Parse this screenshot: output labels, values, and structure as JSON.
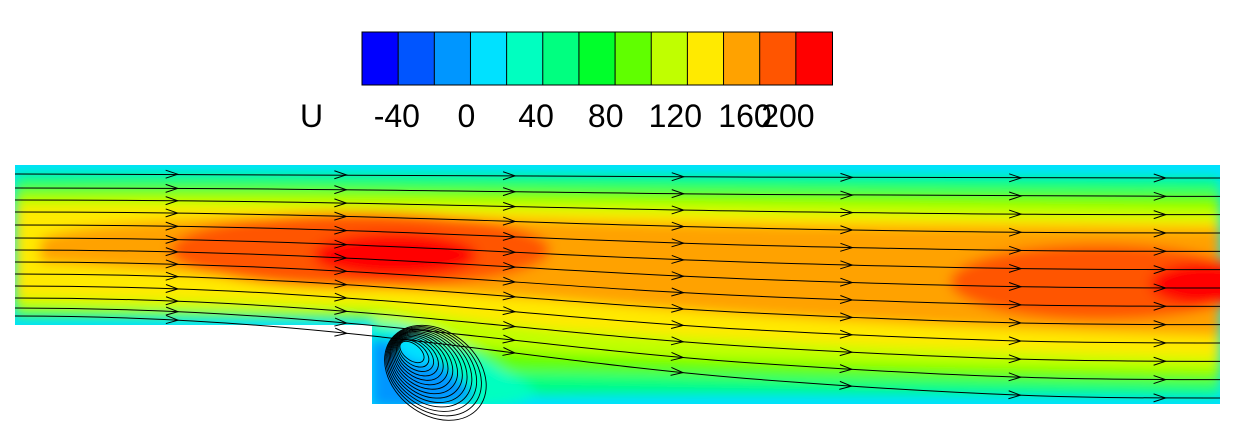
{
  "colorbar": {
    "variable": "U",
    "tick_labels": [
      "-40",
      "0",
      "40",
      "80",
      "120",
      "160",
      "200"
    ],
    "tick_values": [
      -40,
      0,
      40,
      80,
      120,
      160,
      200
    ],
    "range": [
      -60,
      210
    ],
    "colors": [
      "#0000ff",
      "#0055ff",
      "#0096ff",
      "#00e1ff",
      "#00ffc0",
      "#00ff80",
      "#00ff2b",
      "#60ff00",
      "#c0ff00",
      "#ffea00",
      "#ffa200",
      "#ff5500",
      "#ff0000"
    ]
  },
  "field": {
    "description_colors": {
      "wall_low": "#00e1ff",
      "recirculation": "#0096ff",
      "core_high": "#ff0000",
      "streamline": "#000000"
    }
  }
}
